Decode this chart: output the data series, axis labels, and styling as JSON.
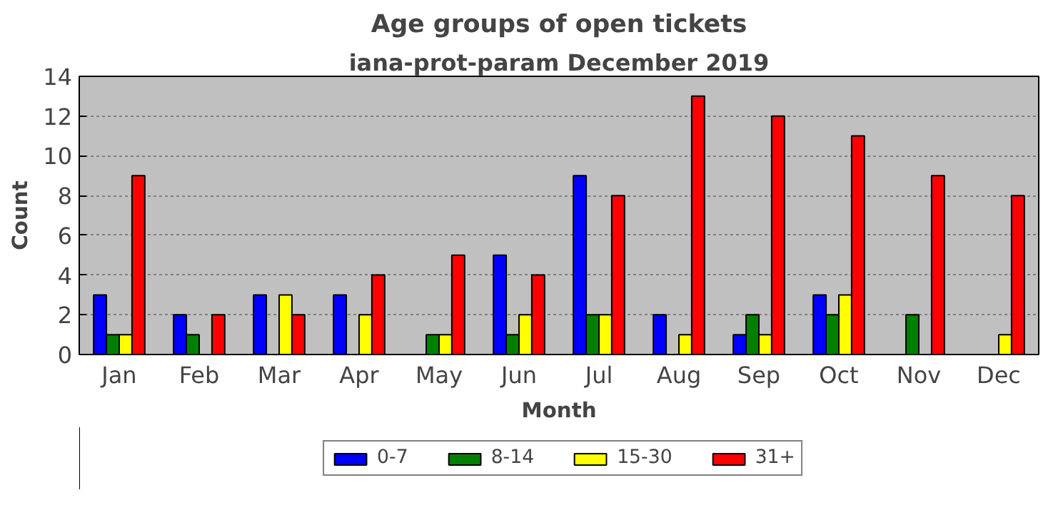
{
  "chart_data": {
    "type": "bar",
    "title": "Age groups of open tickets",
    "subtitle": "iana-prot-param December 2019",
    "xlabel": "Month",
    "ylabel": "Count",
    "categories": [
      "Jan",
      "Feb",
      "Mar",
      "Apr",
      "May",
      "Jun",
      "Jul",
      "Aug",
      "Sep",
      "Oct",
      "Nov",
      "Dec"
    ],
    "series": [
      {
        "name": "0-7",
        "color": "#0000ff",
        "values": [
          3,
          2,
          3,
          3,
          0,
          5,
          9,
          2,
          1,
          3,
          0,
          0
        ]
      },
      {
        "name": "8-14",
        "color": "#008000",
        "values": [
          1,
          1,
          0,
          0,
          1,
          1,
          2,
          0,
          2,
          2,
          2,
          0
        ]
      },
      {
        "name": "15-30",
        "color": "#ffff00",
        "values": [
          1,
          0,
          3,
          2,
          1,
          2,
          2,
          1,
          1,
          3,
          0,
          1
        ]
      },
      {
        "name": "31+",
        "color": "#ff0000",
        "values": [
          9,
          2,
          2,
          4,
          5,
          4,
          8,
          13,
          12,
          11,
          9,
          8
        ]
      }
    ],
    "ylim": [
      0,
      14
    ],
    "yticks": [
      0,
      2,
      4,
      6,
      8,
      10,
      12,
      14
    ],
    "grid": "y",
    "legend": "bottom"
  }
}
